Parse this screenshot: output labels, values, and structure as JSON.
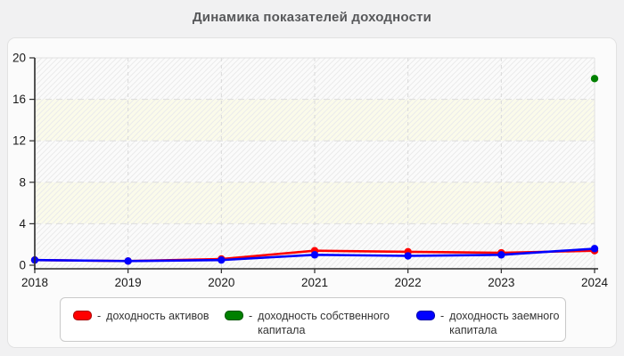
{
  "header": {
    "title": "Динамика показателей доходности"
  },
  "chart_data": {
    "type": "line",
    "title": "Динамика показателей доходности",
    "categories": [
      "2018",
      "2019",
      "2020",
      "2021",
      "2022",
      "2023",
      "2024"
    ],
    "xlabel": "",
    "ylabel": "",
    "ylim": [
      0,
      20
    ],
    "y_ticks": [
      0,
      4,
      8,
      12,
      16,
      20
    ],
    "grid": "dashed horizontal and vertical gridlines, hatched plot background with cream bands at 4-8 and 12-16",
    "legend_position": "bottom",
    "legend_prefix": "-",
    "series": [
      {
        "name": "доходность активов",
        "color": "#ff0000",
        "values": [
          0.5,
          0.4,
          0.6,
          1.4,
          1.3,
          1.2,
          1.4
        ]
      },
      {
        "name": "доходность собственного капитала",
        "color": "#008000",
        "values": [
          null,
          null,
          null,
          null,
          null,
          null,
          18
        ]
      },
      {
        "name": "доходность заемного капитала",
        "color": "#0000ff",
        "values": [
          0.5,
          0.4,
          0.5,
          1.0,
          0.9,
          1.0,
          1.6
        ]
      }
    ],
    "colors": {
      "page_background": "#f1f1f2",
      "panel_background": "#fbfbfb",
      "band_cream": "#fbfbea",
      "hatch_line": "#ebebeb",
      "gridline": "#dcdcdc",
      "axis": "#2b2b2b",
      "tick_label": "#1a1a1a"
    }
  }
}
